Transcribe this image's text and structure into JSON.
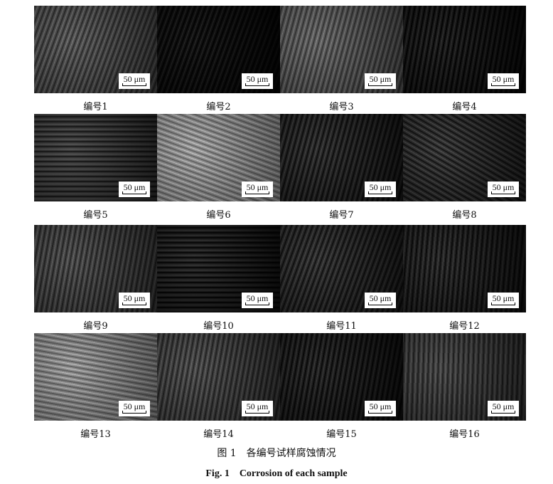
{
  "figure": {
    "panels": [
      {
        "label": "编号1",
        "scale": "50 μm"
      },
      {
        "label": "编号2",
        "scale": "50 μm"
      },
      {
        "label": "编号3",
        "scale": "50 μm"
      },
      {
        "label": "编号4",
        "scale": "50 μm"
      },
      {
        "label": "编号5",
        "scale": "50 μm"
      },
      {
        "label": "编号6",
        "scale": "50 μm"
      },
      {
        "label": "编号7",
        "scale": "50 μm"
      },
      {
        "label": "编号8",
        "scale": "50 μm"
      },
      {
        "label": "编号9",
        "scale": "50 μm"
      },
      {
        "label": "编号10",
        "scale": "50 μm"
      },
      {
        "label": "编号11",
        "scale": "50 μm"
      },
      {
        "label": "编号12",
        "scale": "50 μm"
      },
      {
        "label": "编号13",
        "scale": "50 μm"
      },
      {
        "label": "编号14",
        "scale": "50 μm"
      },
      {
        "label": "编号15",
        "scale": "50 μm"
      },
      {
        "label": "编号16",
        "scale": "50 μm"
      }
    ],
    "caption_cn": "图 1　各编号试样腐蚀情况",
    "caption_en": "Fig. 1　Corrosion of each sample"
  }
}
